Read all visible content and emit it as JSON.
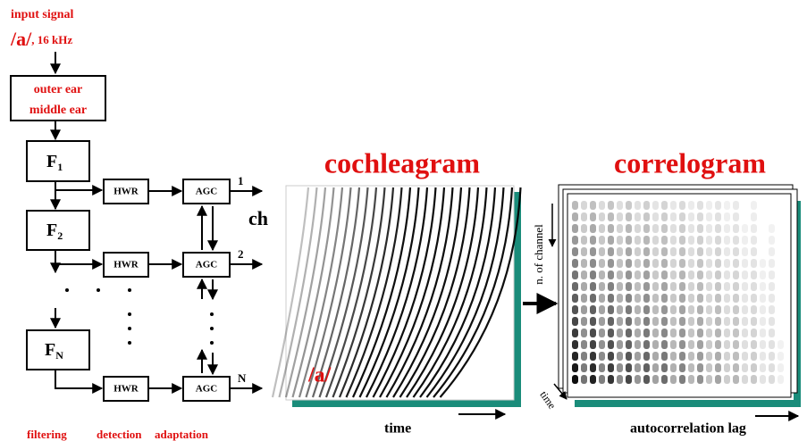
{
  "input": {
    "label": "input signal",
    "phoneme": "/a/",
    "rate": ", 16 kHz"
  },
  "outer_block": [
    "outer ear",
    "middle ear"
  ],
  "filters": [
    {
      "name": "F",
      "sub": "1"
    },
    {
      "name": "F",
      "sub": "2"
    },
    {
      "name": "F",
      "sub": "N"
    }
  ],
  "hwr": [
    "HWR",
    "HWR",
    "HWR"
  ],
  "agc": [
    "AGC",
    "AGC",
    "AGC"
  ],
  "outputs": [
    "1",
    "2",
    "N"
  ],
  "ch": "ch",
  "stages": [
    "filtering",
    "detection",
    "adaptation"
  ],
  "cochleagram": {
    "title": "cochleagram",
    "phoneme": "/a/",
    "x_label": "time"
  },
  "correlogram": {
    "title": "correlogram",
    "y_label": "n. of channel",
    "z_label": "time",
    "x_label": "autocorrelation lag"
  }
}
